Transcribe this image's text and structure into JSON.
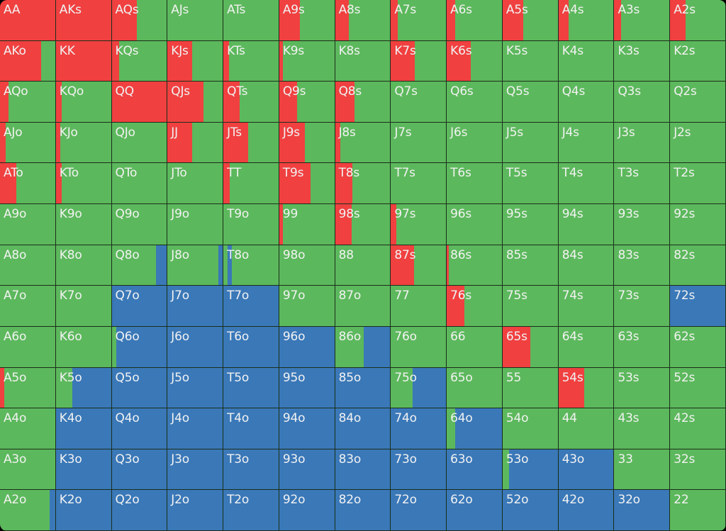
{
  "chart_data": {
    "type": "heatmap",
    "colors": {
      "raise": "#f04040",
      "call": "#5cb85c",
      "fold": "#3a78b8"
    },
    "ranks": [
      "A",
      "K",
      "Q",
      "J",
      "T",
      "9",
      "8",
      "7",
      "6",
      "5",
      "4",
      "3",
      "2"
    ],
    "rows": [
      [
        {
          "hand": "AA",
          "raise": 1,
          "call": 0,
          "fold": 0
        },
        {
          "hand": "AKs",
          "raise": 1,
          "call": 0,
          "fold": 0
        },
        {
          "hand": "AQs",
          "raise": 0.45,
          "call": 0.55,
          "fold": 0
        },
        {
          "hand": "AJs",
          "raise": 0,
          "call": 1,
          "fold": 0
        },
        {
          "hand": "ATs",
          "raise": 0,
          "call": 1,
          "fold": 0
        },
        {
          "hand": "A9s",
          "raise": 0.38,
          "call": 0.62,
          "fold": 0
        },
        {
          "hand": "A8s",
          "raise": 0.25,
          "call": 0.75,
          "fold": 0
        },
        {
          "hand": "A7s",
          "raise": 0.12,
          "call": 0.88,
          "fold": 0
        },
        {
          "hand": "A6s",
          "raise": 0.15,
          "call": 0.85,
          "fold": 0
        },
        {
          "hand": "A5s",
          "raise": 0.38,
          "call": 0.62,
          "fold": 0
        },
        {
          "hand": "A4s",
          "raise": 0.18,
          "call": 0.82,
          "fold": 0
        },
        {
          "hand": "A3s",
          "raise": 0.12,
          "call": 0.88,
          "fold": 0
        },
        {
          "hand": "A2s",
          "raise": 0.28,
          "call": 0.72,
          "fold": 0
        }
      ],
      [
        {
          "hand": "AKo",
          "raise": 0.75,
          "call": 0.25,
          "fold": 0
        },
        {
          "hand": "KK",
          "raise": 1,
          "call": 0,
          "fold": 0
        },
        {
          "hand": "KQs",
          "raise": 0.13,
          "call": 0.87,
          "fold": 0
        },
        {
          "hand": "KJs",
          "raise": 0.45,
          "call": 0.55,
          "fold": 0
        },
        {
          "hand": "KTs",
          "raise": 0.1,
          "call": 0.9,
          "fold": 0
        },
        {
          "hand": "K9s",
          "raise": 0.07,
          "call": 0.93,
          "fold": 0
        },
        {
          "hand": "K8s",
          "raise": 0,
          "call": 1,
          "fold": 0
        },
        {
          "hand": "K7s",
          "raise": 0.43,
          "call": 0.57,
          "fold": 0
        },
        {
          "hand": "K6s",
          "raise": 0.43,
          "call": 0.57,
          "fold": 0
        },
        {
          "hand": "K5s",
          "raise": 0,
          "call": 1,
          "fold": 0
        },
        {
          "hand": "K4s",
          "raise": 0,
          "call": 1,
          "fold": 0
        },
        {
          "hand": "K3s",
          "raise": 0,
          "call": 1,
          "fold": 0
        },
        {
          "hand": "K2s",
          "raise": 0,
          "call": 1,
          "fold": 0
        }
      ],
      [
        {
          "hand": "AQo",
          "raise": 0.15,
          "call": 0.85,
          "fold": 0
        },
        {
          "hand": "KQo",
          "raise": 0.1,
          "call": 0.9,
          "fold": 0
        },
        {
          "hand": "QQ",
          "raise": 1,
          "call": 0,
          "fold": 0
        },
        {
          "hand": "QJs",
          "raise": 0.65,
          "call": 0.35,
          "fold": 0
        },
        {
          "hand": "QTs",
          "raise": 0.3,
          "call": 0.7,
          "fold": 0
        },
        {
          "hand": "Q9s",
          "raise": 0.32,
          "call": 0.68,
          "fold": 0
        },
        {
          "hand": "Q8s",
          "raise": 0.35,
          "call": 0.65,
          "fold": 0
        },
        {
          "hand": "Q7s",
          "raise": 0,
          "call": 1,
          "fold": 0
        },
        {
          "hand": "Q6s",
          "raise": 0,
          "call": 1,
          "fold": 0
        },
        {
          "hand": "Q5s",
          "raise": 0,
          "call": 1,
          "fold": 0
        },
        {
          "hand": "Q4s",
          "raise": 0,
          "call": 1,
          "fold": 0
        },
        {
          "hand": "Q3s",
          "raise": 0,
          "call": 1,
          "fold": 0
        },
        {
          "hand": "Q2s",
          "raise": 0,
          "call": 1,
          "fold": 0
        }
      ],
      [
        {
          "hand": "AJo",
          "raise": 0.1,
          "call": 0.9,
          "fold": 0
        },
        {
          "hand": "KJo",
          "raise": 0.08,
          "call": 0.92,
          "fold": 0
        },
        {
          "hand": "QJo",
          "raise": 0,
          "call": 1,
          "fold": 0
        },
        {
          "hand": "JJ",
          "raise": 0.45,
          "call": 0.55,
          "fold": 0
        },
        {
          "hand": "JTs",
          "raise": 0.45,
          "call": 0.55,
          "fold": 0
        },
        {
          "hand": "J9s",
          "raise": 0.47,
          "call": 0.53,
          "fold": 0
        },
        {
          "hand": "J8s",
          "raise": 0.1,
          "call": 0.9,
          "fold": 0
        },
        {
          "hand": "J7s",
          "raise": 0,
          "call": 1,
          "fold": 0
        },
        {
          "hand": "J6s",
          "raise": 0,
          "call": 1,
          "fold": 0
        },
        {
          "hand": "J5s",
          "raise": 0,
          "call": 1,
          "fold": 0
        },
        {
          "hand": "J4s",
          "raise": 0,
          "call": 1,
          "fold": 0
        },
        {
          "hand": "J3s",
          "raise": 0,
          "call": 1,
          "fold": 0
        },
        {
          "hand": "J2s",
          "raise": 0,
          "call": 1,
          "fold": 0
        }
      ],
      [
        {
          "hand": "ATo",
          "raise": 0.3,
          "call": 0.7,
          "fold": 0
        },
        {
          "hand": "KTo",
          "raise": 0.1,
          "call": 0.9,
          "fold": 0
        },
        {
          "hand": "QTo",
          "raise": 0,
          "call": 1,
          "fold": 0
        },
        {
          "hand": "JTo",
          "raise": 0,
          "call": 1,
          "fold": 0
        },
        {
          "hand": "TT",
          "raise": 0.12,
          "call": 0.88,
          "fold": 0
        },
        {
          "hand": "T9s",
          "raise": 0.57,
          "call": 0.43,
          "fold": 0
        },
        {
          "hand": "T8s",
          "raise": 0.32,
          "call": 0.68,
          "fold": 0
        },
        {
          "hand": "T7s",
          "raise": 0,
          "call": 1,
          "fold": 0
        },
        {
          "hand": "T6s",
          "raise": 0,
          "call": 1,
          "fold": 0
        },
        {
          "hand": "T5s",
          "raise": 0,
          "call": 1,
          "fold": 0
        },
        {
          "hand": "T4s",
          "raise": 0,
          "call": 1,
          "fold": 0
        },
        {
          "hand": "T3s",
          "raise": 0,
          "call": 1,
          "fold": 0
        },
        {
          "hand": "T2s",
          "raise": 0,
          "call": 1,
          "fold": 0
        }
      ],
      [
        {
          "hand": "A9o",
          "raise": 0,
          "call": 1,
          "fold": 0
        },
        {
          "hand": "K9o",
          "raise": 0,
          "call": 1,
          "fold": 0
        },
        {
          "hand": "Q9o",
          "raise": 0,
          "call": 1,
          "fold": 0
        },
        {
          "hand": "J9o",
          "raise": 0,
          "call": 1,
          "fold": 0
        },
        {
          "hand": "T9o",
          "raise": 0,
          "call": 1,
          "fold": 0
        },
        {
          "hand": "99",
          "raise": 0.06,
          "call": 0.94,
          "fold": 0
        },
        {
          "hand": "98s",
          "raise": 0.3,
          "call": 0.7,
          "fold": 0
        },
        {
          "hand": "97s",
          "raise": 0.1,
          "call": 0.9,
          "fold": 0
        },
        {
          "hand": "96s",
          "raise": 0,
          "call": 1,
          "fold": 0
        },
        {
          "hand": "95s",
          "raise": 0,
          "call": 1,
          "fold": 0
        },
        {
          "hand": "94s",
          "raise": 0,
          "call": 1,
          "fold": 0
        },
        {
          "hand": "93s",
          "raise": 0,
          "call": 1,
          "fold": 0
        },
        {
          "hand": "92s",
          "raise": 0,
          "call": 1,
          "fold": 0
        }
      ],
      [
        {
          "hand": "A8o",
          "raise": 0,
          "call": 1,
          "fold": 0
        },
        {
          "hand": "K8o",
          "raise": 0,
          "call": 1,
          "fold": 0
        },
        {
          "hand": "Q8o",
          "raise": 0,
          "call": 0.8,
          "fold": 0.2
        },
        {
          "hand": "J8o",
          "raise": 0,
          "call": 0.92,
          "fold": 0.08
        },
        {
          "hand": "T8o",
          "raise": 0,
          "call": 0.07,
          "fold": 0.08,
          "call2": 0.85
        },
        {
          "hand": "98o",
          "raise": 0,
          "call": 1,
          "fold": 0
        },
        {
          "hand": "88",
          "raise": 0,
          "call": 1,
          "fold": 0
        },
        {
          "hand": "87s",
          "raise": 0.42,
          "call": 0.58,
          "fold": 0
        },
        {
          "hand": "86s",
          "raise": 0.04,
          "call": 0.96,
          "fold": 0
        },
        {
          "hand": "85s",
          "raise": 0,
          "call": 1,
          "fold": 0
        },
        {
          "hand": "84s",
          "raise": 0,
          "call": 1,
          "fold": 0
        },
        {
          "hand": "83s",
          "raise": 0,
          "call": 1,
          "fold": 0
        },
        {
          "hand": "82s",
          "raise": 0,
          "call": 1,
          "fold": 0
        }
      ],
      [
        {
          "hand": "A7o",
          "raise": 0,
          "call": 1,
          "fold": 0
        },
        {
          "hand": "K7o",
          "raise": 0,
          "call": 1,
          "fold": 0
        },
        {
          "hand": "Q7o",
          "raise": 0,
          "call": 0,
          "fold": 1
        },
        {
          "hand": "J7o",
          "raise": 0,
          "call": 0,
          "fold": 1
        },
        {
          "hand": "T7o",
          "raise": 0,
          "call": 0,
          "fold": 1
        },
        {
          "hand": "97o",
          "raise": 0,
          "call": 1,
          "fold": 0
        },
        {
          "hand": "87o",
          "raise": 0,
          "call": 1,
          "fold": 0
        },
        {
          "hand": "77",
          "raise": 0,
          "call": 1,
          "fold": 0
        },
        {
          "hand": "76s",
          "raise": 0.32,
          "call": 0.68,
          "fold": 0
        },
        {
          "hand": "75s",
          "raise": 0,
          "call": 1,
          "fold": 0
        },
        {
          "hand": "74s",
          "raise": 0,
          "call": 1,
          "fold": 0
        },
        {
          "hand": "73s",
          "raise": 0,
          "call": 1,
          "fold": 0
        },
        {
          "hand": "72s",
          "raise": 0,
          "call": 0,
          "fold": 1
        }
      ],
      [
        {
          "hand": "A6o",
          "raise": 0,
          "call": 1,
          "fold": 0
        },
        {
          "hand": "K6o",
          "raise": 0,
          "call": 1,
          "fold": 0
        },
        {
          "hand": "Q6o",
          "raise": 0,
          "call": 0.08,
          "fold": 0.92
        },
        {
          "hand": "J6o",
          "raise": 0,
          "call": 0,
          "fold": 1
        },
        {
          "hand": "T6o",
          "raise": 0,
          "call": 0,
          "fold": 1
        },
        {
          "hand": "96o",
          "raise": 0,
          "call": 0,
          "fold": 1
        },
        {
          "hand": "86o",
          "raise": 0,
          "call": 0.52,
          "fold": 0.48
        },
        {
          "hand": "76o",
          "raise": 0,
          "call": 1,
          "fold": 0
        },
        {
          "hand": "66",
          "raise": 0,
          "call": 1,
          "fold": 0
        },
        {
          "hand": "65s",
          "raise": 0.5,
          "call": 0.5,
          "fold": 0
        },
        {
          "hand": "64s",
          "raise": 0,
          "call": 1,
          "fold": 0
        },
        {
          "hand": "63s",
          "raise": 0,
          "call": 1,
          "fold": 0
        },
        {
          "hand": "62s",
          "raise": 0,
          "call": 1,
          "fold": 0
        }
      ],
      [
        {
          "hand": "A5o",
          "raise": 0.08,
          "call": 0.92,
          "fold": 0
        },
        {
          "hand": "K5o",
          "raise": 0,
          "call": 0.3,
          "fold": 0.7
        },
        {
          "hand": "Q5o",
          "raise": 0,
          "call": 0,
          "fold": 1
        },
        {
          "hand": "J5o",
          "raise": 0,
          "call": 0,
          "fold": 1
        },
        {
          "hand": "T5o",
          "raise": 0,
          "call": 0,
          "fold": 1
        },
        {
          "hand": "95o",
          "raise": 0,
          "call": 0,
          "fold": 1
        },
        {
          "hand": "85o",
          "raise": 0,
          "call": 0,
          "fold": 1
        },
        {
          "hand": "75o",
          "raise": 0,
          "call": 0.4,
          "fold": 0.6
        },
        {
          "hand": "65o",
          "raise": 0,
          "call": 1,
          "fold": 0
        },
        {
          "hand": "55",
          "raise": 0,
          "call": 1,
          "fold": 0
        },
        {
          "hand": "54s",
          "raise": 0.47,
          "call": 0.53,
          "fold": 0
        },
        {
          "hand": "53s",
          "raise": 0,
          "call": 1,
          "fold": 0
        },
        {
          "hand": "52s",
          "raise": 0,
          "call": 1,
          "fold": 0
        }
      ],
      [
        {
          "hand": "A4o",
          "raise": 0,
          "call": 1,
          "fold": 0
        },
        {
          "hand": "K4o",
          "raise": 0,
          "call": 0,
          "fold": 1
        },
        {
          "hand": "Q4o",
          "raise": 0,
          "call": 0,
          "fold": 1
        },
        {
          "hand": "J4o",
          "raise": 0,
          "call": 0,
          "fold": 1
        },
        {
          "hand": "T4o",
          "raise": 0,
          "call": 0,
          "fold": 1
        },
        {
          "hand": "94o",
          "raise": 0,
          "call": 0,
          "fold": 1
        },
        {
          "hand": "84o",
          "raise": 0,
          "call": 0,
          "fold": 1
        },
        {
          "hand": "74o",
          "raise": 0,
          "call": 0,
          "fold": 1
        },
        {
          "hand": "64o",
          "raise": 0,
          "call": 0.15,
          "fold": 0.85
        },
        {
          "hand": "54o",
          "raise": 0,
          "call": 1,
          "fold": 0
        },
        {
          "hand": "44",
          "raise": 0,
          "call": 1,
          "fold": 0
        },
        {
          "hand": "43s",
          "raise": 0,
          "call": 1,
          "fold": 0
        },
        {
          "hand": "42s",
          "raise": 0,
          "call": 1,
          "fold": 0
        }
      ],
      [
        {
          "hand": "A3o",
          "raise": 0,
          "call": 1,
          "fold": 0
        },
        {
          "hand": "K3o",
          "raise": 0,
          "call": 0,
          "fold": 1
        },
        {
          "hand": "Q3o",
          "raise": 0,
          "call": 0,
          "fold": 1
        },
        {
          "hand": "J3o",
          "raise": 0,
          "call": 0,
          "fold": 1
        },
        {
          "hand": "T3o",
          "raise": 0,
          "call": 0,
          "fold": 1
        },
        {
          "hand": "93o",
          "raise": 0,
          "call": 0,
          "fold": 1
        },
        {
          "hand": "83o",
          "raise": 0,
          "call": 0,
          "fold": 1
        },
        {
          "hand": "73o",
          "raise": 0,
          "call": 0,
          "fold": 1
        },
        {
          "hand": "63o",
          "raise": 0,
          "call": 0,
          "fold": 1
        },
        {
          "hand": "53o",
          "raise": 0,
          "call": 0.12,
          "fold": 0.88
        },
        {
          "hand": "43o",
          "raise": 0,
          "call": 0,
          "fold": 1
        },
        {
          "hand": "33",
          "raise": 0,
          "call": 1,
          "fold": 0
        },
        {
          "hand": "32s",
          "raise": 0,
          "call": 1,
          "fold": 0
        }
      ],
      [
        {
          "hand": "A2o",
          "raise": 0,
          "call": 0.9,
          "fold": 0.1
        },
        {
          "hand": "K2o",
          "raise": 0,
          "call": 0,
          "fold": 1
        },
        {
          "hand": "Q2o",
          "raise": 0,
          "call": 0,
          "fold": 1
        },
        {
          "hand": "J2o",
          "raise": 0,
          "call": 0,
          "fold": 1
        },
        {
          "hand": "T2o",
          "raise": 0,
          "call": 0,
          "fold": 1
        },
        {
          "hand": "92o",
          "raise": 0,
          "call": 0,
          "fold": 1
        },
        {
          "hand": "82o",
          "raise": 0,
          "call": 0,
          "fold": 1
        },
        {
          "hand": "72o",
          "raise": 0,
          "call": 0,
          "fold": 1
        },
        {
          "hand": "62o",
          "raise": 0,
          "call": 0,
          "fold": 1
        },
        {
          "hand": "52o",
          "raise": 0,
          "call": 0,
          "fold": 1
        },
        {
          "hand": "42o",
          "raise": 0,
          "call": 0,
          "fold": 1
        },
        {
          "hand": "32o",
          "raise": 0,
          "call": 0,
          "fold": 1
        },
        {
          "hand": "22",
          "raise": 0,
          "call": 1,
          "fold": 0
        }
      ]
    ]
  }
}
